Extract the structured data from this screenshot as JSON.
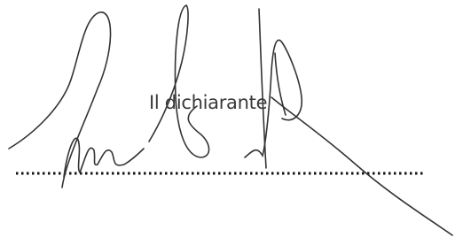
{
  "signature_block": {
    "label": "Il dichiarante"
  }
}
